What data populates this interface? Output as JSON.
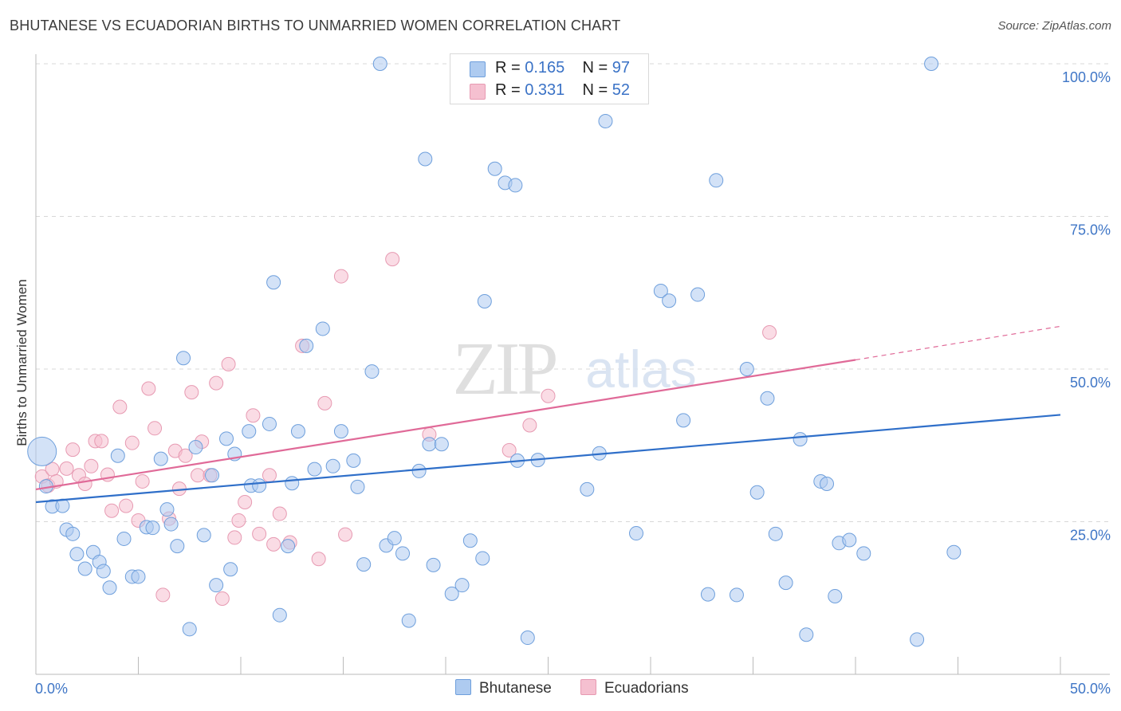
{
  "header": {
    "title": "BHUTANESE VS ECUADORIAN BIRTHS TO UNMARRIED WOMEN CORRELATION CHART",
    "source": "Source: ZipAtlas.com"
  },
  "legend": {
    "r_label": "R =",
    "n_label": "N =",
    "rows": [
      {
        "r": "0.165",
        "n": "97"
      },
      {
        "r": "0.331",
        "n": "52"
      }
    ]
  },
  "watermark": {
    "zip": "ZIP",
    "atlas": "atlas"
  },
  "colors": {
    "bhutanese_fill": "#aecbf0",
    "bhutanese_stroke": "#6e9fdc",
    "bhutanese_line": "#2f6fc9",
    "ecuadorian_fill": "#f5c0d0",
    "ecuadorian_stroke": "#e79ab2",
    "ecuadorian_line": "#e06a98",
    "tick_text": "#3f76c6"
  },
  "chart_data": {
    "type": "scatter",
    "title": "BHUTANESE VS ECUADORIAN BIRTHS TO UNMARRIED WOMEN CORRELATION CHART",
    "xlabel": "",
    "ylabel": "Births to Unmarried Women",
    "xlim": [
      0,
      50
    ],
    "ylim": [
      0,
      103
    ],
    "x_tick_labels": [
      "0.0%",
      "50.0%"
    ],
    "y_ticks": [
      25,
      50,
      75,
      100
    ],
    "y_tick_labels": [
      "25.0%",
      "50.0%",
      "75.0%",
      "100.0%"
    ],
    "grid": true,
    "legend_position": "top-center",
    "series": [
      {
        "name": "Bhutanese",
        "r": 0.165,
        "n": 97,
        "trend": {
          "x0": 0,
          "y0": 28.2,
          "x1": 50,
          "y1": 42.5
        },
        "points": [
          [
            0.3,
            36.5
          ],
          [
            0.5,
            30.8
          ],
          [
            0.8,
            27.5
          ],
          [
            1.3,
            27.6
          ],
          [
            1.5,
            23.7
          ],
          [
            1.8,
            23.0
          ],
          [
            2.0,
            19.7
          ],
          [
            2.4,
            17.3
          ],
          [
            2.8,
            20.0
          ],
          [
            3.1,
            18.4
          ],
          [
            3.3,
            16.9
          ],
          [
            3.6,
            14.2
          ],
          [
            4.0,
            35.8
          ],
          [
            4.3,
            22.2
          ],
          [
            4.7,
            16.0
          ],
          [
            5.0,
            16.0
          ],
          [
            5.4,
            24.1
          ],
          [
            5.7,
            24.0
          ],
          [
            6.1,
            35.3
          ],
          [
            6.4,
            27.0
          ],
          [
            6.6,
            24.6
          ],
          [
            6.9,
            21.0
          ],
          [
            7.2,
            51.8
          ],
          [
            7.5,
            7.4
          ],
          [
            7.8,
            37.2
          ],
          [
            8.2,
            22.8
          ],
          [
            8.6,
            32.6
          ],
          [
            8.8,
            14.6
          ],
          [
            9.3,
            38.6
          ],
          [
            9.5,
            17.2
          ],
          [
            9.7,
            36.1
          ],
          [
            10.4,
            39.8
          ],
          [
            10.5,
            30.9
          ],
          [
            10.9,
            30.9
          ],
          [
            11.4,
            41.0
          ],
          [
            11.6,
            64.2
          ],
          [
            11.9,
            9.7
          ],
          [
            12.3,
            21.0
          ],
          [
            12.5,
            31.3
          ],
          [
            12.8,
            39.8
          ],
          [
            13.2,
            53.8
          ],
          [
            13.6,
            33.6
          ],
          [
            14.0,
            56.6
          ],
          [
            14.5,
            34.1
          ],
          [
            14.9,
            39.8
          ],
          [
            15.5,
            35.0
          ],
          [
            15.7,
            30.7
          ],
          [
            16.0,
            18.0
          ],
          [
            16.4,
            49.6
          ],
          [
            16.8,
            100.0
          ],
          [
            17.1,
            21.1
          ],
          [
            17.5,
            22.3
          ],
          [
            17.9,
            19.8
          ],
          [
            18.2,
            8.8
          ],
          [
            18.7,
            33.3
          ],
          [
            19.0,
            84.4
          ],
          [
            19.2,
            37.7
          ],
          [
            19.4,
            17.9
          ],
          [
            19.8,
            37.7
          ],
          [
            20.3,
            13.2
          ],
          [
            20.8,
            14.6
          ],
          [
            21.2,
            21.9
          ],
          [
            21.8,
            19.0
          ],
          [
            21.9,
            61.1
          ],
          [
            22.4,
            82.8
          ],
          [
            22.9,
            80.5
          ],
          [
            23.4,
            80.1
          ],
          [
            23.5,
            35.0
          ],
          [
            24.0,
            6.0
          ],
          [
            24.5,
            35.1
          ],
          [
            26.9,
            30.3
          ],
          [
            27.5,
            36.2
          ],
          [
            27.8,
            90.6
          ],
          [
            29.3,
            23.1
          ],
          [
            30.5,
            62.8
          ],
          [
            30.9,
            61.2
          ],
          [
            31.6,
            41.6
          ],
          [
            32.3,
            62.2
          ],
          [
            32.8,
            13.1
          ],
          [
            33.2,
            80.9
          ],
          [
            34.2,
            13.0
          ],
          [
            34.7,
            50.0
          ],
          [
            35.2,
            29.8
          ],
          [
            35.7,
            45.2
          ],
          [
            36.1,
            23.0
          ],
          [
            36.6,
            15.0
          ],
          [
            37.3,
            38.5
          ],
          [
            37.6,
            6.5
          ],
          [
            38.3,
            31.6
          ],
          [
            38.6,
            31.2
          ],
          [
            39.0,
            12.8
          ],
          [
            39.2,
            21.5
          ],
          [
            39.7,
            22.0
          ],
          [
            40.4,
            19.8
          ],
          [
            43.0,
            5.7
          ],
          [
            43.7,
            100.0
          ],
          [
            44.8,
            20.0
          ]
        ]
      },
      {
        "name": "Ecuadorians",
        "r": 0.331,
        "n": 52,
        "trend": {
          "x0": 0,
          "y0": 30.3,
          "x1": 40,
          "y1": 51.5,
          "dash_x1": 50,
          "dash_y1": 57.0
        },
        "points": [
          [
            0.3,
            32.4
          ],
          [
            0.6,
            30.9
          ],
          [
            0.8,
            33.6
          ],
          [
            1.0,
            31.6
          ],
          [
            1.5,
            33.7
          ],
          [
            1.8,
            36.8
          ],
          [
            2.1,
            32.6
          ],
          [
            2.4,
            31.2
          ],
          [
            2.7,
            34.1
          ],
          [
            2.9,
            38.2
          ],
          [
            3.2,
            38.2
          ],
          [
            3.5,
            32.7
          ],
          [
            3.7,
            26.8
          ],
          [
            4.1,
            43.8
          ],
          [
            4.4,
            27.6
          ],
          [
            4.7,
            37.9
          ],
          [
            5.0,
            25.2
          ],
          [
            5.2,
            31.6
          ],
          [
            5.5,
            46.8
          ],
          [
            5.8,
            40.3
          ],
          [
            6.2,
            13.0
          ],
          [
            6.5,
            25.5
          ],
          [
            6.8,
            36.6
          ],
          [
            7.0,
            30.4
          ],
          [
            7.3,
            35.8
          ],
          [
            7.6,
            46.2
          ],
          [
            7.9,
            32.6
          ],
          [
            8.1,
            38.1
          ],
          [
            8.5,
            32.6
          ],
          [
            8.8,
            47.7
          ],
          [
            9.1,
            12.4
          ],
          [
            9.4,
            50.8
          ],
          [
            9.7,
            22.4
          ],
          [
            9.9,
            25.2
          ],
          [
            10.2,
            28.2
          ],
          [
            10.6,
            42.4
          ],
          [
            10.9,
            23.0
          ],
          [
            11.4,
            32.6
          ],
          [
            11.6,
            21.3
          ],
          [
            11.9,
            26.3
          ],
          [
            12.4,
            21.6
          ],
          [
            13.0,
            53.8
          ],
          [
            13.8,
            18.9
          ],
          [
            14.1,
            44.4
          ],
          [
            14.9,
            65.2
          ],
          [
            15.1,
            22.9
          ],
          [
            17.4,
            68.0
          ],
          [
            19.2,
            39.3
          ],
          [
            23.1,
            36.7
          ],
          [
            24.1,
            40.8
          ],
          [
            25.0,
            45.6
          ],
          [
            35.8,
            56.0
          ]
        ]
      }
    ]
  },
  "bottom_legend": {
    "bhutanese": "Bhutanese",
    "ecuadorians": "Ecuadorians"
  }
}
